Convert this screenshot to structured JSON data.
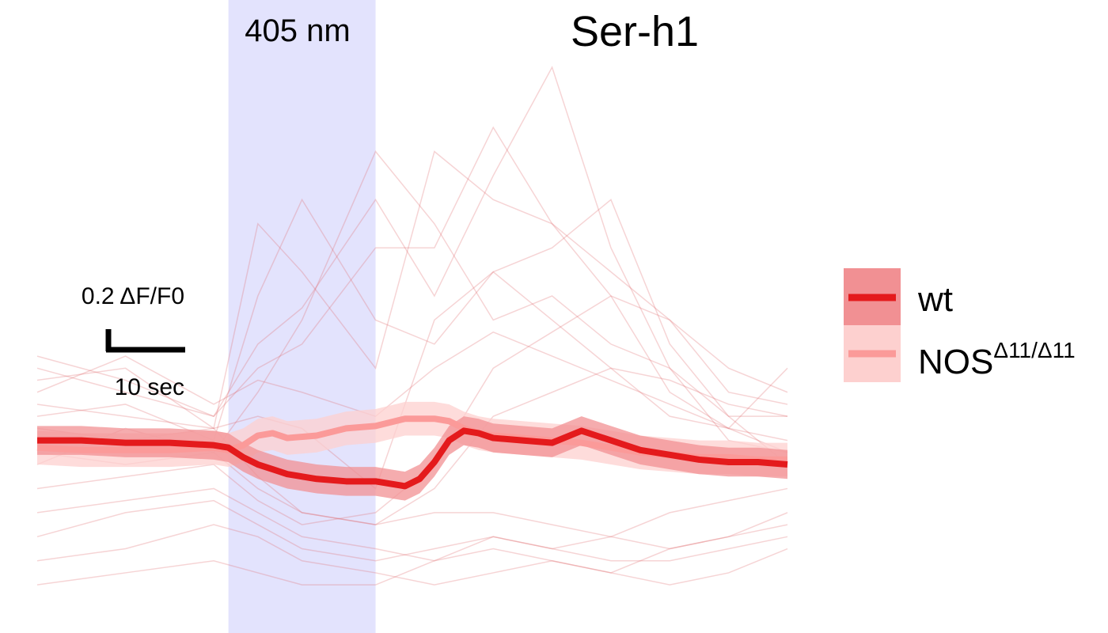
{
  "chart_data": {
    "type": "line",
    "title": "Ser-h1",
    "stimulus": {
      "label": "405 nm",
      "start_sec": 0,
      "end_sec": 10
    },
    "scale_bar": {
      "y_label": "0.2 ΔF/F0",
      "x_label": "10 sec",
      "y_value": 0.2,
      "x_value": 10
    },
    "xlim": [
      -13,
      38
    ],
    "ylim": [
      -0.8,
      1.55
    ],
    "xlabel": "",
    "ylabel": "",
    "grid": false,
    "legend_position": "right",
    "colors": {
      "stimulus": "#e3e3fd",
      "wt_line": "#e41a1c",
      "wt_band": "#f19093",
      "nos_line": "#fb9a99",
      "nos_band": "#fdd0cf",
      "individual": "#e06668"
    },
    "legend": [
      {
        "key": "wt",
        "label": "wt",
        "sup": ""
      },
      {
        "key": "nos",
        "label": "NOS",
        "sup": "Δ11/Δ11"
      }
    ],
    "series": [
      {
        "name": "wt",
        "x": [
          -13,
          -10,
          -7,
          -4,
          -1,
          0,
          1,
          2,
          3,
          4,
          6,
          8,
          10,
          12,
          13,
          14,
          15,
          16,
          17,
          18,
          20,
          22,
          24,
          26,
          28,
          30,
          32,
          34,
          36,
          38
        ],
        "y": [
          0,
          0,
          -0.01,
          -0.01,
          -0.02,
          -0.03,
          -0.07,
          -0.1,
          -0.12,
          -0.14,
          -0.16,
          -0.17,
          -0.17,
          -0.19,
          -0.16,
          -0.09,
          0,
          0.04,
          0.03,
          0.01,
          0,
          -0.01,
          0.04,
          0,
          -0.04,
          -0.06,
          -0.08,
          -0.09,
          -0.09,
          -0.1
        ],
        "band_halfwidth": 0.06
      },
      {
        "name": "NOS",
        "x": [
          -13,
          -10,
          -7,
          -4,
          -1,
          0,
          1,
          2,
          3,
          4,
          6,
          8,
          10,
          12,
          13,
          14,
          15,
          16,
          17,
          18,
          20,
          22,
          24,
          26,
          28,
          30,
          32,
          34,
          36,
          38
        ],
        "y": [
          -0.03,
          -0.04,
          -0.04,
          -0.04,
          -0.03,
          -0.04,
          -0.02,
          0.02,
          0.03,
          0.01,
          0.02,
          0.05,
          0.06,
          0.09,
          0.09,
          0.09,
          0.08,
          0.05,
          0.03,
          0.02,
          0.01,
          0,
          -0.01,
          -0.03,
          -0.05,
          -0.06,
          -0.07,
          -0.07,
          -0.08,
          -0.08
        ],
        "band_halfwidth": 0.07
      }
    ],
    "individual_traces": [
      {
        "x": [
          -13,
          -7,
          -1,
          2,
          5,
          10,
          14,
          18,
          22,
          26,
          30,
          34,
          38
        ],
        "y": [
          0.35,
          0.25,
          0.1,
          0.4,
          0.55,
          1.0,
          0.6,
          1.1,
          1.55,
          0.8,
          0.3,
          0.1,
          -0.1
        ]
      },
      {
        "x": [
          -13,
          -7,
          -1,
          2,
          5,
          10,
          14,
          18,
          22,
          26,
          30,
          34,
          38
        ],
        "y": [
          0.25,
          0.3,
          0.05,
          0.9,
          0.7,
          0.3,
          1.2,
          1.0,
          0.9,
          0.6,
          0.2,
          0.05,
          0.3
        ]
      },
      {
        "x": [
          -13,
          -7,
          -1,
          2,
          5,
          10,
          14,
          18,
          22,
          26,
          30,
          34,
          38
        ],
        "y": [
          0.1,
          0.15,
          0,
          0.6,
          1.0,
          0.5,
          0.4,
          0.7,
          0.8,
          1.0,
          0.4,
          0.1,
          0.1
        ]
      },
      {
        "x": [
          -13,
          -7,
          -1,
          2,
          5,
          10,
          14,
          18,
          22,
          26,
          30,
          34,
          38
        ],
        "y": [
          -0.1,
          0.05,
          -0.05,
          0.2,
          0.5,
          1.2,
          0.9,
          0.5,
          0.6,
          0.4,
          0.3,
          0,
          -0.05
        ]
      },
      {
        "x": [
          -13,
          -7,
          -1,
          2,
          5,
          10,
          14,
          18,
          22,
          26,
          30,
          34,
          38
        ],
        "y": [
          0.3,
          0.2,
          0.1,
          0.3,
          0.4,
          0.8,
          0.8,
          1.3,
          0.9,
          0.7,
          0.5,
          0.2,
          0.15
        ]
      },
      {
        "x": [
          -13,
          -7,
          -1,
          2,
          5,
          10,
          14,
          18,
          22,
          26,
          30,
          34,
          38
        ],
        "y": [
          0.05,
          0,
          0.05,
          0.1,
          0.05,
          -0.2,
          0.5,
          0.7,
          0.5,
          0.3,
          0.1,
          0.05,
          0
        ]
      },
      {
        "x": [
          -13,
          -7,
          -1,
          2,
          5,
          10,
          14,
          18,
          22,
          26,
          30,
          34,
          38
        ],
        "y": [
          -0.05,
          -0.1,
          -0.05,
          -0.2,
          -0.3,
          -0.35,
          -0.3,
          -0.3,
          -0.35,
          -0.4,
          -0.3,
          -0.25,
          -0.2
        ]
      },
      {
        "x": [
          -13,
          -7,
          -1,
          2,
          5,
          10,
          14,
          18,
          22,
          26,
          30,
          34,
          38
        ],
        "y": [
          -0.3,
          -0.25,
          -0.2,
          -0.3,
          -0.4,
          -0.45,
          -0.5,
          -0.45,
          -0.5,
          -0.55,
          -0.45,
          -0.4,
          -0.35
        ]
      },
      {
        "x": [
          -13,
          -7,
          -1,
          2,
          5,
          10,
          14,
          18,
          22,
          26,
          30,
          34,
          38
        ],
        "y": [
          -0.5,
          -0.45,
          -0.35,
          -0.4,
          -0.5,
          -0.55,
          -0.6,
          -0.55,
          -0.5,
          -0.55,
          -0.6,
          -0.55,
          -0.45
        ]
      },
      {
        "x": [
          -13,
          -7,
          -1,
          2,
          5,
          10,
          14,
          18,
          22,
          26,
          30,
          34,
          38
        ],
        "y": [
          -0.6,
          -0.55,
          -0.5,
          -0.55,
          -0.6,
          -0.6,
          -0.5,
          -0.4,
          -0.45,
          -0.4,
          -0.45,
          -0.4,
          -0.3
        ]
      },
      {
        "x": [
          -13,
          -7,
          -1,
          2,
          5,
          10,
          14,
          18,
          22,
          26,
          30,
          34,
          38
        ],
        "y": [
          0.15,
          0.1,
          0.05,
          -0.15,
          -0.3,
          -0.35,
          -0.2,
          0.1,
          0.2,
          0.3,
          0.25,
          0.15,
          0.1
        ]
      },
      {
        "x": [
          -13,
          -7,
          -1,
          2,
          5,
          10,
          14,
          18,
          22,
          26,
          30,
          34,
          38
        ],
        "y": [
          -0.2,
          -0.15,
          -0.1,
          -0.25,
          -0.35,
          -0.3,
          -0.1,
          0.3,
          0.45,
          0.6,
          0.5,
          0.3,
          0.2
        ]
      },
      {
        "x": [
          -13,
          -7,
          -1,
          2,
          5,
          10,
          14,
          18,
          22,
          26,
          30,
          34,
          38
        ],
        "y": [
          0.2,
          0.35,
          0.15,
          0.25,
          0.2,
          0.1,
          0.3,
          0.45,
          0.35,
          0.25,
          0.15,
          0.05,
          -0.05
        ]
      },
      {
        "x": [
          -13,
          -7,
          -1,
          2,
          5,
          10,
          14,
          18,
          22,
          26,
          30,
          34,
          38
        ],
        "y": [
          -0.4,
          -0.3,
          -0.25,
          -0.35,
          -0.45,
          -0.5,
          -0.45,
          -0.4,
          -0.45,
          -0.5,
          -0.5,
          -0.45,
          -0.4
        ]
      }
    ]
  }
}
